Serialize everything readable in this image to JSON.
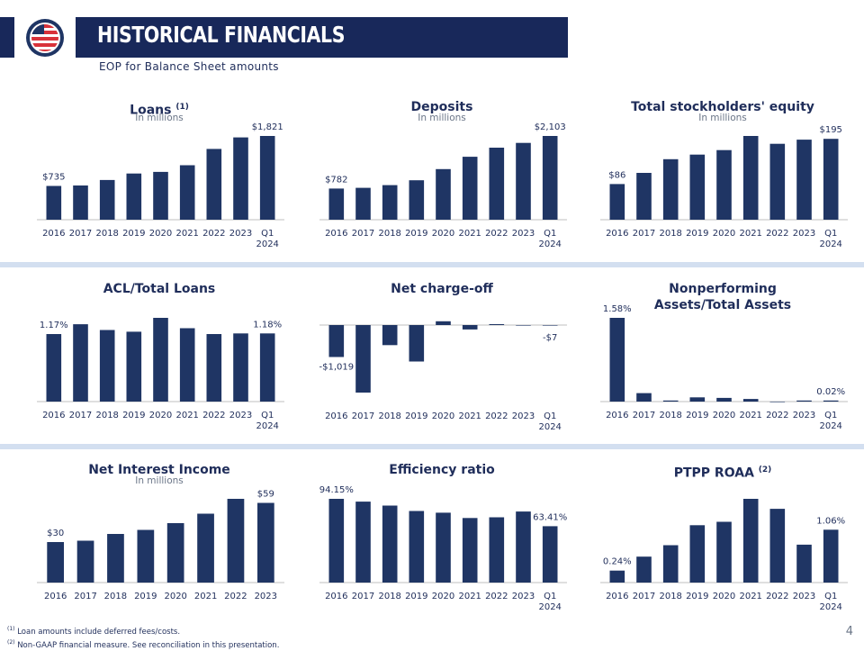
{
  "header": {
    "title": "HISTORICAL FINANCIALS",
    "subtitle": "EOP for Balance Sheet amounts"
  },
  "colors": {
    "bar": "#1f3564",
    "header": "#18285a",
    "divider": "#d3dff0",
    "logo_red": "#d8323a"
  },
  "footnotes": [
    "Loan amounts include deferred fees/costs.",
    "Non-GAAP financial measure. See reconciliation in this presentation."
  ],
  "footnote_marks": [
    "(1)",
    "(2)"
  ],
  "page_number": "4",
  "chart_data": [
    {
      "id": "loans",
      "type": "bar",
      "title": "Loans",
      "title_sup": "(1)",
      "subtitle": "In millions",
      "categories": [
        "2016",
        "2017",
        "2018",
        "2019",
        "2020",
        "2021",
        "2022",
        "2023",
        "Q1\n2024"
      ],
      "values": [
        735,
        745,
        864,
        1005,
        1040,
        1185,
        1540,
        1790,
        1821
      ],
      "labels": [
        {
          "index": 0,
          "text": "$735"
        },
        {
          "index": 8,
          "text": "$1,821"
        }
      ]
    },
    {
      "id": "deposits",
      "type": "bar",
      "title": "Deposits",
      "title_sup": "",
      "subtitle": "In millions",
      "categories": [
        "2016",
        "2017",
        "2018",
        "2019",
        "2020",
        "2021",
        "2022",
        "2023",
        "Q1\n2024"
      ],
      "values": [
        782,
        800,
        868,
        990,
        1270,
        1580,
        1810,
        1930,
        2103
      ],
      "labels": [
        {
          "index": 0,
          "text": "$782"
        },
        {
          "index": 8,
          "text": "$2,103"
        }
      ]
    },
    {
      "id": "equity",
      "type": "bar",
      "title": "Total stockholders' equity",
      "title_sup": "",
      "subtitle": "In millions",
      "categories": [
        "2016",
        "2017",
        "2018",
        "2019",
        "2020",
        "2021",
        "2022",
        "2023",
        "Q1\n2024"
      ],
      "values": [
        86,
        113,
        146,
        157,
        168,
        202,
        183,
        193,
        195
      ],
      "labels": [
        {
          "index": 0,
          "text": "$86"
        },
        {
          "index": 8,
          "text": "$195"
        }
      ]
    },
    {
      "id": "acl",
      "type": "bar",
      "title": "ACL/Total Loans",
      "title_sup": "",
      "subtitle": "",
      "categories": [
        "2016",
        "2017",
        "2018",
        "2019",
        "2020",
        "2021",
        "2022",
        "2023",
        "Q1\n2024"
      ],
      "values": [
        1.17,
        1.34,
        1.24,
        1.21,
        1.45,
        1.27,
        1.17,
        1.18,
        1.18
      ],
      "labels": [
        {
          "index": 0,
          "text": "1.17%"
        },
        {
          "index": 8,
          "text": "1.18%"
        }
      ]
    },
    {
      "id": "chargeoff",
      "type": "bar",
      "title": "Net charge-off",
      "title_sup": "",
      "subtitle": "",
      "categories": [
        "2016",
        "2017",
        "2018",
        "2019",
        "2020",
        "2021",
        "2022",
        "2023",
        "Q1\n2024"
      ],
      "values": [
        -1019,
        -2150,
        -640,
        -1160,
        120,
        -140,
        30,
        0,
        -7
      ],
      "labels": [
        {
          "index": 0,
          "text": "-$1,019"
        },
        {
          "index": 8,
          "text": "-$7"
        }
      ]
    },
    {
      "id": "npa",
      "type": "bar",
      "title": "Nonperforming\nAssets/Total Assets",
      "title_sup": "",
      "subtitle": "",
      "categories": [
        "2016",
        "2017",
        "2018",
        "2019",
        "2020",
        "2021",
        "2022",
        "2023",
        "Q1\n2024"
      ],
      "values": [
        1.58,
        0.16,
        0.02,
        0.08,
        0.07,
        0.05,
        0.0,
        0.02,
        0.02
      ],
      "labels": [
        {
          "index": 0,
          "text": "1.58%"
        },
        {
          "index": 8,
          "text": "0.02%"
        }
      ]
    },
    {
      "id": "nii",
      "type": "bar",
      "title": "Net Interest Income",
      "title_sup": "",
      "subtitle": "In millions",
      "categories": [
        "2016",
        "2017",
        "2018",
        "2019",
        "2020",
        "2021",
        "2022",
        "2023"
      ],
      "values": [
        30,
        31,
        36,
        39,
        44,
        51,
        62,
        59
      ],
      "labels": [
        {
          "index": 0,
          "text": "$30"
        },
        {
          "index": 7,
          "text": "$59"
        }
      ]
    },
    {
      "id": "efficiency",
      "type": "bar",
      "title": "Efficiency  ratio",
      "title_sup": "",
      "subtitle": "",
      "categories": [
        "2016",
        "2017",
        "2018",
        "2019",
        "2020",
        "2021",
        "2022",
        "2023",
        "Q1\n2024"
      ],
      "values": [
        94.15,
        91.0,
        86.6,
        80.5,
        78.6,
        72.6,
        73.4,
        79.9,
        63.41
      ],
      "labels": [
        {
          "index": 0,
          "text": "94.15%"
        },
        {
          "index": 8,
          "text": "63.41%"
        }
      ]
    },
    {
      "id": "roaa",
      "type": "bar",
      "title": "PTPP ROAA",
      "title_sup": "(2)",
      "subtitle": "",
      "categories": [
        "2016",
        "2017",
        "2018",
        "2019",
        "2020",
        "2021",
        "2022",
        "2023",
        "Q1\n2024"
      ],
      "values": [
        0.24,
        0.52,
        0.75,
        1.15,
        1.22,
        1.68,
        1.48,
        0.76,
        1.06
      ],
      "labels": [
        {
          "index": 0,
          "text": "0.24%"
        },
        {
          "index": 8,
          "text": "1.06%"
        }
      ]
    }
  ]
}
